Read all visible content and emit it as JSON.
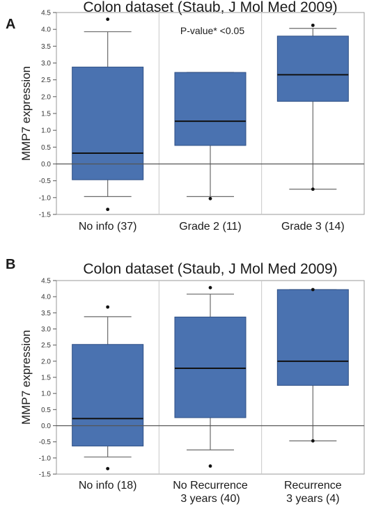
{
  "chart_data": [
    {
      "panel_label": "A",
      "type": "box",
      "title": "Colon dataset (Staub, J Mol Med 2009)",
      "ylabel": "MMP7 expression",
      "ylim": [
        -1.5,
        4.5
      ],
      "yticks": [
        "-1.5",
        "-1.0",
        "-0.5",
        "0.0",
        "0.5",
        "1.0",
        "1.5",
        "2.0",
        "2.5",
        "3.0",
        "3.5",
        "4.0",
        "4.5"
      ],
      "annotation": "P-value* <0.05",
      "baseline": 0.0,
      "box_color": "#4a72b0",
      "categories": [
        {
          "label": [
            "No info (37)"
          ],
          "whisker_low": -0.97,
          "q1": -0.47,
          "median": 0.32,
          "q3": 2.88,
          "whisker_high": 3.93,
          "outliers": [
            -1.35,
            4.3
          ]
        },
        {
          "label": [
            "Grade 2 (11)"
          ],
          "whisker_low": -0.97,
          "q1": 0.55,
          "median": 1.27,
          "q3": 2.72,
          "whisker_high": 2.72,
          "outliers": [
            -1.03
          ]
        },
        {
          "label": [
            "Grade 3 (14)"
          ],
          "whisker_low": -0.75,
          "q1": 1.86,
          "median": 2.65,
          "q3": 3.8,
          "whisker_high": 4.03,
          "outliers": [
            -0.75,
            4.12
          ]
        }
      ]
    },
    {
      "panel_label": "B",
      "type": "box",
      "title": "Colon dataset (Staub, J Mol Med 2009)",
      "ylabel": "MMP7 expression",
      "ylim": [
        -1.5,
        4.5
      ],
      "yticks": [
        "-1.5",
        "-1.0",
        "-0.5",
        "0.0",
        "0.5",
        "1.0",
        "1.5",
        "2.0",
        "2.5",
        "3.0",
        "3.5",
        "4.0",
        "4.5"
      ],
      "annotation": "",
      "baseline": 0.0,
      "box_color": "#4a72b0",
      "categories": [
        {
          "label": [
            "No info (18)"
          ],
          "whisker_low": -0.97,
          "q1": -0.63,
          "median": 0.22,
          "q3": 2.52,
          "whisker_high": 3.38,
          "outliers": [
            -1.33,
            3.68
          ]
        },
        {
          "label": [
            "No Recurrence",
            "3 years (40)"
          ],
          "whisker_low": -0.75,
          "q1": 0.25,
          "median": 1.78,
          "q3": 3.37,
          "whisker_high": 4.08,
          "outliers": [
            -1.25,
            4.28
          ]
        },
        {
          "label": [
            "Recurrence",
            "3 years (4)"
          ],
          "whisker_low": -0.47,
          "q1": 1.25,
          "median": 2.0,
          "q3": 4.22,
          "whisker_high": 4.22,
          "outliers": [
            -0.47,
            4.22
          ]
        }
      ]
    }
  ]
}
